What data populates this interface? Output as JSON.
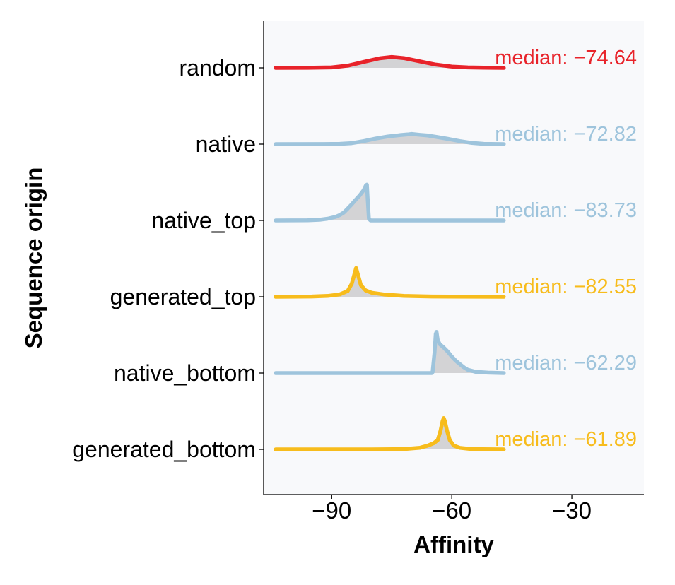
{
  "chart_data": {
    "type": "ridgeline",
    "title": "",
    "xlabel": "Affinity",
    "ylabel": "Sequence origin",
    "xlim": [
      -107,
      -12
    ],
    "xticks": [
      -90,
      -60,
      -30
    ],
    "xtick_labels": [
      "−90",
      "−60",
      "−30"
    ],
    "grid": false,
    "background": "#f8f9fb",
    "fill_color": "#d3d3d5",
    "series": [
      {
        "category": "random",
        "median_label": "median: −74.64",
        "color": "#e8232a",
        "height": 0.48,
        "points": [
          [
            -104,
            0
          ],
          [
            -96,
            0.005
          ],
          [
            -90,
            0.04
          ],
          [
            -86,
            0.2
          ],
          [
            -82,
            0.55
          ],
          [
            -78,
            0.88
          ],
          [
            -75,
            1.0
          ],
          [
            -72,
            0.9
          ],
          [
            -68,
            0.6
          ],
          [
            -64,
            0.3
          ],
          [
            -60,
            0.12
          ],
          [
            -56,
            0.04
          ],
          [
            -52,
            0.01
          ],
          [
            -47,
            0
          ]
        ]
      },
      {
        "category": "native",
        "median_label": "median: −72.82",
        "color": "#9ec4dc",
        "height": 0.45,
        "points": [
          [
            -104,
            0
          ],
          [
            -92,
            0.005
          ],
          [
            -88,
            0.03
          ],
          [
            -85,
            0.1
          ],
          [
            -82,
            0.3
          ],
          [
            -79,
            0.55
          ],
          [
            -76,
            0.75
          ],
          [
            -73,
            0.88
          ],
          [
            -71,
            0.95
          ],
          [
            -70,
            1.0
          ],
          [
            -68,
            0.92
          ],
          [
            -66,
            0.85
          ],
          [
            -64,
            0.72
          ],
          [
            -61,
            0.52
          ],
          [
            -58,
            0.3
          ],
          [
            -55,
            0.12
          ],
          [
            -52,
            0.03
          ],
          [
            -47,
            0
          ]
        ]
      },
      {
        "category": "native_top",
        "median_label": "median: −83.73",
        "color": "#9ec4dc",
        "height": 1.58,
        "points": [
          [
            -104,
            0
          ],
          [
            -96,
            0.005
          ],
          [
            -93,
            0.02
          ],
          [
            -91,
            0.05
          ],
          [
            -89,
            0.1
          ],
          [
            -88,
            0.15
          ],
          [
            -87,
            0.22
          ],
          [
            -86,
            0.33
          ],
          [
            -85,
            0.45
          ],
          [
            -84,
            0.58
          ],
          [
            -83,
            0.7
          ],
          [
            -82,
            0.85
          ],
          [
            -81.5,
            0.97
          ],
          [
            -81.2,
            1.0
          ],
          [
            -81,
            0.6
          ],
          [
            -80.7,
            0.05
          ],
          [
            -80.3,
            0
          ],
          [
            -47,
            0
          ]
        ]
      },
      {
        "category": "generated_top",
        "median_label": "median: −82.55",
        "color": "#f7bc1c",
        "height": 1.27,
        "points": [
          [
            -104,
            0
          ],
          [
            -95,
            0.01
          ],
          [
            -91,
            0.03
          ],
          [
            -88,
            0.08
          ],
          [
            -86,
            0.2
          ],
          [
            -85,
            0.45
          ],
          [
            -84.3,
            0.8
          ],
          [
            -83.9,
            1.0
          ],
          [
            -83.5,
            0.8
          ],
          [
            -82.7,
            0.4
          ],
          [
            -81.5,
            0.22
          ],
          [
            -80,
            0.14
          ],
          [
            -77,
            0.08
          ],
          [
            -72,
            0.03
          ],
          [
            -65,
            0.01
          ],
          [
            -47,
            0
          ]
        ]
      },
      {
        "category": "native_bottom",
        "median_label": "median: −62.29",
        "color": "#9ec4dc",
        "height": 1.82,
        "points": [
          [
            -104,
            0
          ],
          [
            -65,
            0
          ],
          [
            -64.8,
            0.02
          ],
          [
            -64.3,
            0.5
          ],
          [
            -64,
            0.95
          ],
          [
            -63.8,
            1.0
          ],
          [
            -63.5,
            0.8
          ],
          [
            -63,
            0.7
          ],
          [
            -62,
            0.62
          ],
          [
            -61,
            0.52
          ],
          [
            -60,
            0.4
          ],
          [
            -59,
            0.3
          ],
          [
            -58,
            0.22
          ],
          [
            -57,
            0.14
          ],
          [
            -56,
            0.08
          ],
          [
            -54,
            0.03
          ],
          [
            -51,
            0.01
          ],
          [
            -47,
            0
          ]
        ]
      },
      {
        "category": "generated_bottom",
        "median_label": "median: −61.89",
        "color": "#f7bc1c",
        "height": 1.38,
        "points": [
          [
            -104,
            0
          ],
          [
            -80,
            0
          ],
          [
            -72,
            0.01
          ],
          [
            -68,
            0.05
          ],
          [
            -66,
            0.12
          ],
          [
            -64.5,
            0.2
          ],
          [
            -63.5,
            0.3
          ],
          [
            -62.8,
            0.6
          ],
          [
            -62.3,
            0.9
          ],
          [
            -62,
            1.0
          ],
          [
            -61.7,
            0.9
          ],
          [
            -61.2,
            0.6
          ],
          [
            -60.5,
            0.3
          ],
          [
            -59.5,
            0.12
          ],
          [
            -58,
            0.05
          ],
          [
            -55,
            0.01
          ],
          [
            -47,
            0
          ]
        ]
      }
    ]
  }
}
